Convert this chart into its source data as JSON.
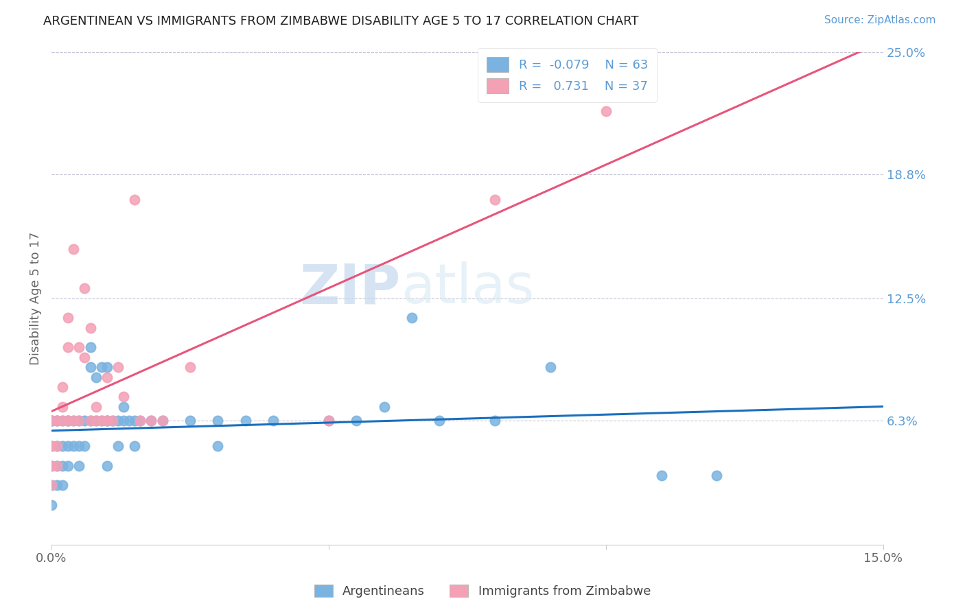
{
  "title": "ARGENTINEAN VS IMMIGRANTS FROM ZIMBABWE DISABILITY AGE 5 TO 17 CORRELATION CHART",
  "source": "Source: ZipAtlas.com",
  "ylabel": "Disability Age 5 to 17",
  "xlim": [
    0.0,
    0.15
  ],
  "ylim": [
    0.0,
    0.25
  ],
  "yticks_right": [
    0.063,
    0.125,
    0.188,
    0.25
  ],
  "yticklabels_right": [
    "6.3%",
    "12.5%",
    "18.8%",
    "25.0%"
  ],
  "blue_R": -0.079,
  "blue_N": 63,
  "pink_R": 0.731,
  "pink_N": 37,
  "blue_color": "#7ab3e0",
  "pink_color": "#f4a0b5",
  "blue_line_color": "#1a6fbd",
  "pink_line_color": "#e8547a",
  "blue_scatter": [
    [
      0.0,
      0.063
    ],
    [
      0.0,
      0.063
    ],
    [
      0.0,
      0.063
    ],
    [
      0.0,
      0.05
    ],
    [
      0.0,
      0.04
    ],
    [
      0.0,
      0.03
    ],
    [
      0.0,
      0.02
    ],
    [
      0.001,
      0.063
    ],
    [
      0.001,
      0.05
    ],
    [
      0.001,
      0.04
    ],
    [
      0.001,
      0.03
    ],
    [
      0.001,
      0.063
    ],
    [
      0.002,
      0.063
    ],
    [
      0.002,
      0.05
    ],
    [
      0.002,
      0.04
    ],
    [
      0.002,
      0.03
    ],
    [
      0.003,
      0.063
    ],
    [
      0.003,
      0.05
    ],
    [
      0.003,
      0.04
    ],
    [
      0.003,
      0.063
    ],
    [
      0.004,
      0.063
    ],
    [
      0.004,
      0.05
    ],
    [
      0.005,
      0.063
    ],
    [
      0.005,
      0.05
    ],
    [
      0.005,
      0.04
    ],
    [
      0.006,
      0.063
    ],
    [
      0.006,
      0.05
    ],
    [
      0.007,
      0.063
    ],
    [
      0.007,
      0.09
    ],
    [
      0.007,
      0.1
    ],
    [
      0.008,
      0.063
    ],
    [
      0.008,
      0.085
    ],
    [
      0.009,
      0.063
    ],
    [
      0.009,
      0.09
    ],
    [
      0.01,
      0.063
    ],
    [
      0.01,
      0.063
    ],
    [
      0.01,
      0.09
    ],
    [
      0.01,
      0.04
    ],
    [
      0.011,
      0.063
    ],
    [
      0.012,
      0.063
    ],
    [
      0.012,
      0.05
    ],
    [
      0.013,
      0.063
    ],
    [
      0.013,
      0.07
    ],
    [
      0.014,
      0.063
    ],
    [
      0.015,
      0.063
    ],
    [
      0.015,
      0.05
    ],
    [
      0.016,
      0.063
    ],
    [
      0.018,
      0.063
    ],
    [
      0.02,
      0.063
    ],
    [
      0.025,
      0.063
    ],
    [
      0.03,
      0.063
    ],
    [
      0.03,
      0.05
    ],
    [
      0.035,
      0.063
    ],
    [
      0.04,
      0.063
    ],
    [
      0.05,
      0.063
    ],
    [
      0.055,
      0.063
    ],
    [
      0.06,
      0.07
    ],
    [
      0.065,
      0.115
    ],
    [
      0.07,
      0.063
    ],
    [
      0.08,
      0.063
    ],
    [
      0.09,
      0.09
    ],
    [
      0.11,
      0.035
    ],
    [
      0.12,
      0.035
    ]
  ],
  "pink_scatter": [
    [
      0.0,
      0.063
    ],
    [
      0.0,
      0.05
    ],
    [
      0.0,
      0.04
    ],
    [
      0.0,
      0.03
    ],
    [
      0.001,
      0.063
    ],
    [
      0.001,
      0.05
    ],
    [
      0.001,
      0.04
    ],
    [
      0.002,
      0.063
    ],
    [
      0.002,
      0.07
    ],
    [
      0.002,
      0.08
    ],
    [
      0.003,
      0.063
    ],
    [
      0.003,
      0.1
    ],
    [
      0.003,
      0.115
    ],
    [
      0.004,
      0.063
    ],
    [
      0.004,
      0.15
    ],
    [
      0.005,
      0.063
    ],
    [
      0.005,
      0.1
    ],
    [
      0.006,
      0.13
    ],
    [
      0.006,
      0.095
    ],
    [
      0.007,
      0.063
    ],
    [
      0.007,
      0.11
    ],
    [
      0.008,
      0.063
    ],
    [
      0.008,
      0.07
    ],
    [
      0.009,
      0.063
    ],
    [
      0.01,
      0.085
    ],
    [
      0.01,
      0.063
    ],
    [
      0.011,
      0.063
    ],
    [
      0.012,
      0.09
    ],
    [
      0.013,
      0.075
    ],
    [
      0.015,
      0.175
    ],
    [
      0.016,
      0.063
    ],
    [
      0.018,
      0.063
    ],
    [
      0.02,
      0.063
    ],
    [
      0.025,
      0.09
    ],
    [
      0.08,
      0.175
    ],
    [
      0.1,
      0.22
    ],
    [
      0.05,
      0.063
    ]
  ],
  "watermark_zip": "ZIP",
  "watermark_atlas": "atlas",
  "legend_label_blue": "Argentineans",
  "legend_label_pink": "Immigrants from Zimbabwe"
}
